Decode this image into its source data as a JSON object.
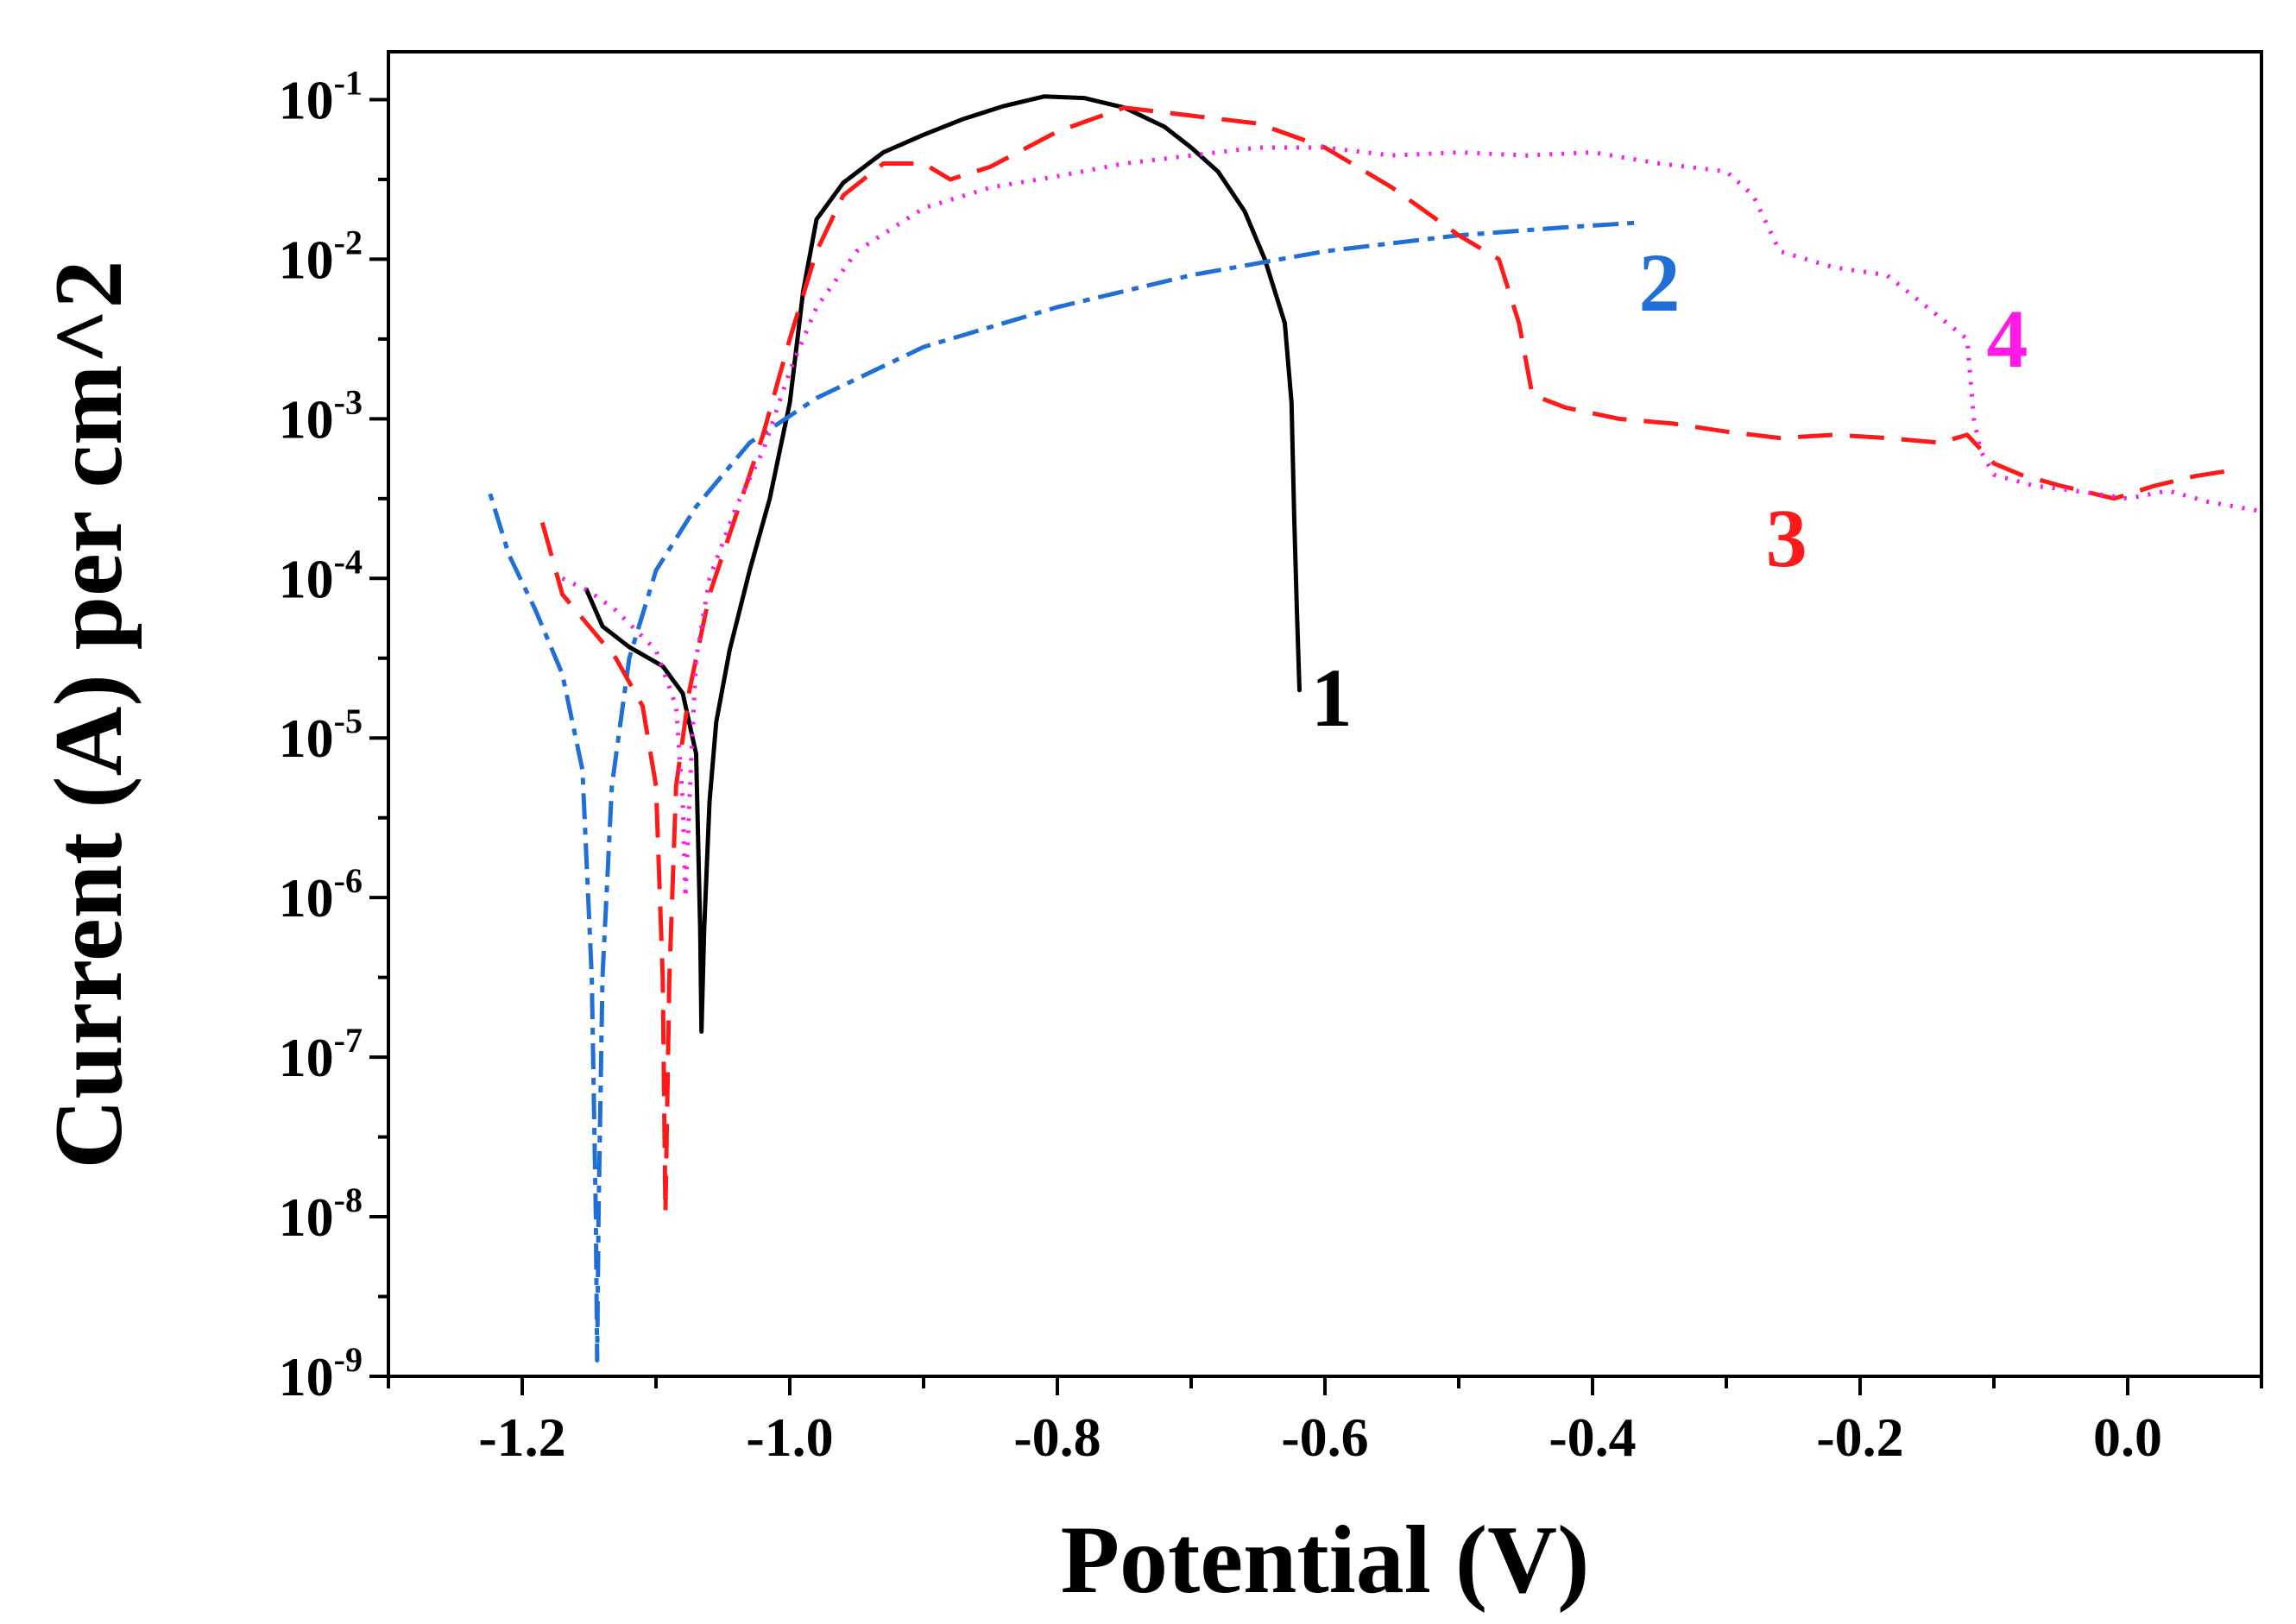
{
  "chart_data": {
    "type": "line",
    "title": "",
    "xlabel": "Potential (V)",
    "ylabel": "Current (A) per cm^2",
    "xlim": [
      -1.3,
      0.1
    ],
    "ylim_log10": [
      -9,
      -0.7
    ],
    "y_scale": "log",
    "grid": false,
    "x_ticks": [
      {
        "value": -1.2,
        "label": "-1.2"
      },
      {
        "value": -1.0,
        "label": "-1.0"
      },
      {
        "value": -0.8,
        "label": "-0.8"
      },
      {
        "value": -0.6,
        "label": "-0.6"
      },
      {
        "value": -0.4,
        "label": "-0.4"
      },
      {
        "value": -0.2,
        "label": "-0.2"
      },
      {
        "value": 0.0,
        "label": "0.0"
      }
    ],
    "y_ticks": [
      {
        "exp": -1,
        "base": "10",
        "sup": "-1"
      },
      {
        "exp": -2,
        "base": "10",
        "sup": "-2"
      },
      {
        "exp": -3,
        "base": "10",
        "sup": "-3"
      },
      {
        "exp": -4,
        "base": "10",
        "sup": "-4"
      },
      {
        "exp": -5,
        "base": "10",
        "sup": "-5"
      },
      {
        "exp": -6,
        "base": "10",
        "sup": "-6"
      },
      {
        "exp": -7,
        "base": "10",
        "sup": "-7"
      },
      {
        "exp": -8,
        "base": "10",
        "sup": "-8"
      },
      {
        "exp": -9,
        "base": "10",
        "sup": "-9"
      }
    ],
    "series": [
      {
        "name": "1",
        "color": "#000000",
        "dash": "solid",
        "label_pos": [
          -0.595,
          -4.75
        ],
        "points": [
          [
            -1.152,
            -4.07
          ],
          [
            -1.14,
            -4.3
          ],
          [
            -1.12,
            -4.43
          ],
          [
            -1.095,
            -4.55
          ],
          [
            -1.08,
            -4.72
          ],
          [
            -1.07,
            -5.1
          ],
          [
            -1.067,
            -6.2
          ],
          [
            -1.066,
            -6.84
          ],
          [
            -1.064,
            -6.2
          ],
          [
            -1.06,
            -5.4
          ],
          [
            -1.055,
            -4.9
          ],
          [
            -1.045,
            -4.45
          ],
          [
            -1.03,
            -3.95
          ],
          [
            -1.015,
            -3.5
          ],
          [
            -1.0,
            -2.9
          ],
          [
            -0.99,
            -2.2
          ],
          [
            -0.98,
            -1.75
          ],
          [
            -0.96,
            -1.52
          ],
          [
            -0.93,
            -1.33
          ],
          [
            -0.9,
            -1.22
          ],
          [
            -0.87,
            -1.12
          ],
          [
            -0.84,
            -1.04
          ],
          [
            -0.81,
            -0.98
          ],
          [
            -0.78,
            -0.99
          ],
          [
            -0.75,
            -1.05
          ],
          [
            -0.72,
            -1.17
          ],
          [
            -0.7,
            -1.3
          ],
          [
            -0.68,
            -1.45
          ],
          [
            -0.66,
            -1.7
          ],
          [
            -0.645,
            -2.0
          ],
          [
            -0.63,
            -2.4
          ],
          [
            -0.625,
            -2.9
          ],
          [
            -0.623,
            -3.6
          ],
          [
            -0.621,
            -4.2
          ],
          [
            -0.619,
            -4.7
          ]
        ]
      },
      {
        "name": "2",
        "color": "#1f6fd6",
        "dash": "8,10,30,10",
        "label_pos": [
          -0.35,
          -2.15
        ],
        "points": [
          [
            -1.224,
            -3.47
          ],
          [
            -1.21,
            -3.85
          ],
          [
            -1.19,
            -4.2
          ],
          [
            -1.17,
            -4.6
          ],
          [
            -1.155,
            -5.2
          ],
          [
            -1.148,
            -6.5
          ],
          [
            -1.145,
            -8.0
          ],
          [
            -1.144,
            -8.9
          ],
          [
            -1.143,
            -8.0
          ],
          [
            -1.14,
            -6.5
          ],
          [
            -1.133,
            -5.3
          ],
          [
            -1.12,
            -4.5
          ],
          [
            -1.1,
            -3.95
          ],
          [
            -1.07,
            -3.55
          ],
          [
            -1.03,
            -3.15
          ],
          [
            -0.98,
            -2.87
          ],
          [
            -0.9,
            -2.55
          ],
          [
            -0.8,
            -2.3
          ],
          [
            -0.7,
            -2.1
          ],
          [
            -0.6,
            -1.95
          ],
          [
            -0.5,
            -1.85
          ],
          [
            -0.42,
            -1.8
          ],
          [
            -0.365,
            -1.77
          ]
        ]
      },
      {
        "name": "3",
        "color": "#ff1a1a",
        "dash": "40,20",
        "label_pos": [
          -0.255,
          -3.75
        ],
        "points": [
          [
            -1.185,
            -3.65
          ],
          [
            -1.17,
            -4.1
          ],
          [
            -1.15,
            -4.3
          ],
          [
            -1.13,
            -4.5
          ],
          [
            -1.11,
            -4.8
          ],
          [
            -1.1,
            -5.3
          ],
          [
            -1.095,
            -6.5
          ],
          [
            -1.093,
            -7.98
          ],
          [
            -1.09,
            -6.5
          ],
          [
            -1.085,
            -5.3
          ],
          [
            -1.075,
            -4.7
          ],
          [
            -1.06,
            -4.1
          ],
          [
            -1.04,
            -3.6
          ],
          [
            -1.02,
            -3.1
          ],
          [
            -1.0,
            -2.5
          ],
          [
            -0.98,
            -1.95
          ],
          [
            -0.96,
            -1.6
          ],
          [
            -0.93,
            -1.4
          ],
          [
            -0.9,
            -1.4
          ],
          [
            -0.88,
            -1.5
          ],
          [
            -0.85,
            -1.42
          ],
          [
            -0.8,
            -1.2
          ],
          [
            -0.75,
            -1.05
          ],
          [
            -0.7,
            -1.1
          ],
          [
            -0.65,
            -1.15
          ],
          [
            -0.6,
            -1.3
          ],
          [
            -0.55,
            -1.55
          ],
          [
            -0.5,
            -1.85
          ],
          [
            -0.47,
            -2.0
          ],
          [
            -0.455,
            -2.4
          ],
          [
            -0.445,
            -2.85
          ],
          [
            -0.42,
            -2.93
          ],
          [
            -0.38,
            -3.0
          ],
          [
            -0.34,
            -3.03
          ],
          [
            -0.3,
            -3.08
          ],
          [
            -0.26,
            -3.12
          ],
          [
            -0.22,
            -3.1
          ],
          [
            -0.18,
            -3.12
          ],
          [
            -0.14,
            -3.15
          ],
          [
            -0.12,
            -3.1
          ],
          [
            -0.1,
            -3.28
          ],
          [
            -0.08,
            -3.35
          ],
          [
            -0.05,
            -3.42
          ],
          [
            -0.01,
            -3.5
          ],
          [
            0.02,
            -3.42
          ],
          [
            0.05,
            -3.36
          ],
          [
            0.08,
            -3.32
          ]
        ]
      },
      {
        "name": "4",
        "color": "#ff1ae8",
        "dash": "3,11",
        "label_pos": [
          -0.09,
          -2.5
        ],
        "points": [
          [
            -1.17,
            -4.0
          ],
          [
            -1.15,
            -4.08
          ],
          [
            -1.13,
            -4.2
          ],
          [
            -1.1,
            -4.45
          ],
          [
            -1.085,
            -4.8
          ],
          [
            -1.08,
            -5.4
          ],
          [
            -1.078,
            -6.0
          ],
          [
            -1.074,
            -5.2
          ],
          [
            -1.07,
            -4.5
          ],
          [
            -1.06,
            -4.0
          ],
          [
            -1.04,
            -3.55
          ],
          [
            -1.02,
            -3.2
          ],
          [
            -1.0,
            -2.7
          ],
          [
            -0.98,
            -2.3
          ],
          [
            -0.95,
            -1.95
          ],
          [
            -0.9,
            -1.68
          ],
          [
            -0.85,
            -1.55
          ],
          [
            -0.8,
            -1.48
          ],
          [
            -0.75,
            -1.4
          ],
          [
            -0.7,
            -1.35
          ],
          [
            -0.65,
            -1.3
          ],
          [
            -0.6,
            -1.3
          ],
          [
            -0.55,
            -1.35
          ],
          [
            -0.5,
            -1.33
          ],
          [
            -0.45,
            -1.35
          ],
          [
            -0.4,
            -1.33
          ],
          [
            -0.35,
            -1.4
          ],
          [
            -0.3,
            -1.45
          ],
          [
            -0.28,
            -1.6
          ],
          [
            -0.26,
            -1.95
          ],
          [
            -0.22,
            -2.05
          ],
          [
            -0.18,
            -2.1
          ],
          [
            -0.15,
            -2.3
          ],
          [
            -0.12,
            -2.5
          ],
          [
            -0.115,
            -3.0
          ],
          [
            -0.11,
            -3.2
          ],
          [
            -0.1,
            -3.35
          ],
          [
            -0.07,
            -3.42
          ],
          [
            -0.04,
            -3.45
          ],
          [
            0.0,
            -3.5
          ],
          [
            0.03,
            -3.45
          ],
          [
            0.06,
            -3.52
          ],
          [
            0.1,
            -3.58
          ]
        ]
      }
    ]
  }
}
